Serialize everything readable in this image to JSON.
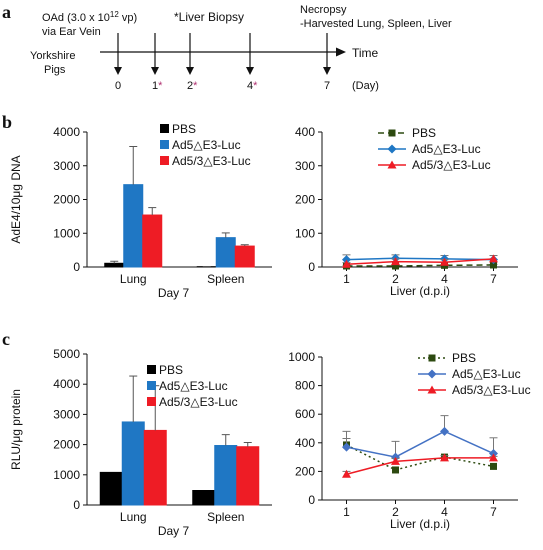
{
  "panel_labels": [
    "a",
    "b",
    "c"
  ],
  "timeline": {
    "dose_line1": "OAd (3.0 x 10",
    "dose_exp": "12",
    "dose_line1_end": " vp)",
    "dose_line2": "via Ear Vein",
    "subject_line1": "Yorkshire",
    "subject_line2": "Pigs",
    "biopsy_label": "*Liver Biopsy",
    "necropsy_line1": "Necropsy",
    "necropsy_line2": "-Harvested Lung, Spleen, Liver",
    "axis_label": "Time",
    "unit_label": "(Day)",
    "days": [
      {
        "day": "0",
        "star": ""
      },
      {
        "day": "1",
        "star": "*"
      },
      {
        "day": "2",
        "star": "*"
      },
      {
        "day": "4",
        "star": "*"
      },
      {
        "day": "7",
        "star": ""
      }
    ],
    "colors": {
      "biopsy": "#8a2e9e",
      "star": "#b03070"
    }
  },
  "chart_data": [
    {
      "type": "bar",
      "panel": "b",
      "ylabel": "AdE4/10μg DNA",
      "xlabel": "Day 7",
      "categories": [
        "Lung",
        "Spleen"
      ],
      "ylim": [
        0,
        4000
      ],
      "yticks": [
        "0",
        "1000",
        "2000",
        "3000",
        "4000"
      ],
      "legend": "top-right",
      "series": [
        {
          "name": "PBS",
          "color": "#000000",
          "values": [
            110,
            10
          ],
          "errors": [
            60,
            5
          ]
        },
        {
          "name": "Ad5△E3-Luc",
          "color": "#1f77c4",
          "values": [
            2440,
            870
          ],
          "errors": [
            1130,
            140
          ]
        },
        {
          "name": "Ad5/3△E3-Luc",
          "color": "#ee1c25",
          "values": [
            1540,
            620
          ],
          "errors": [
            220,
            40
          ]
        }
      ]
    },
    {
      "type": "line",
      "panel": "b",
      "xlabel": "Liver (d.p.i)",
      "categories": [
        "1",
        "2",
        "4",
        "7"
      ],
      "ylim": [
        0,
        400
      ],
      "yticks": [
        "0",
        "100",
        "200",
        "300",
        "400"
      ],
      "legend": "top-right",
      "series": [
        {
          "name": "PBS",
          "color": "#2d4a10",
          "marker": "square",
          "dash": "6,4",
          "values": [
            3,
            3,
            5,
            6
          ],
          "errors": [
            2,
            2,
            2,
            2
          ]
        },
        {
          "name": "Ad5△E3-Luc",
          "color": "#1f77c4",
          "marker": "diamond",
          "dash": "",
          "values": [
            22,
            26,
            24,
            22
          ],
          "errors": [
            14,
            10,
            10,
            12
          ]
        },
        {
          "name": "Ad5/3△E3-Luc",
          "color": "#ee1c25",
          "marker": "triangle",
          "dash": "",
          "values": [
            8,
            16,
            14,
            24
          ],
          "errors": [
            5,
            8,
            8,
            10
          ]
        }
      ]
    },
    {
      "type": "bar",
      "panel": "c",
      "ylabel": "RLU/μg protein",
      "xlabel": "Day 7",
      "categories": [
        "Lung",
        "Spleen"
      ],
      "ylim": [
        0,
        5000
      ],
      "yticks": [
        "0",
        "1000",
        "2000",
        "3000",
        "4000",
        "5000"
      ],
      "legend": "top-right",
      "series": [
        {
          "name": "PBS",
          "color": "#000000",
          "values": [
            1080,
            480
          ],
          "errors": [
            0,
            0
          ]
        },
        {
          "name": "Ad5△E3-Luc",
          "color": "#1f77c4",
          "values": [
            2750,
            1970
          ],
          "errors": [
            1520,
            360
          ]
        },
        {
          "name": "Ad5/3△E3-Luc",
          "color": "#ee1c25",
          "values": [
            2470,
            1930
          ],
          "errors": [
            1480,
            140
          ]
        }
      ]
    },
    {
      "type": "line",
      "panel": "c",
      "xlabel": "Liver (d.p.i)",
      "categories": [
        "1",
        "2",
        "4",
        "7"
      ],
      "ylim": [
        0,
        1000
      ],
      "yticks": [
        "0",
        "200",
        "400",
        "600",
        "800",
        "1000"
      ],
      "legend": "top-right",
      "series": [
        {
          "name": "PBS",
          "color": "#2d4a10",
          "marker": "square",
          "dash": "2,3",
          "values": [
            385,
            210,
            300,
            235
          ],
          "errors": [
            95,
            0,
            0,
            0
          ]
        },
        {
          "name": "Ad5△E3-Luc",
          "color": "#4472c4",
          "marker": "diamond",
          "dash": "",
          "values": [
            370,
            300,
            480,
            325
          ],
          "errors": [
            60,
            110,
            110,
            110
          ]
        },
        {
          "name": "Ad5/3△E3-Luc",
          "color": "#ee1c25",
          "marker": "triangle",
          "dash": "",
          "values": [
            180,
            270,
            295,
            295
          ],
          "errors": [
            20,
            20,
            15,
            10
          ]
        }
      ]
    }
  ]
}
